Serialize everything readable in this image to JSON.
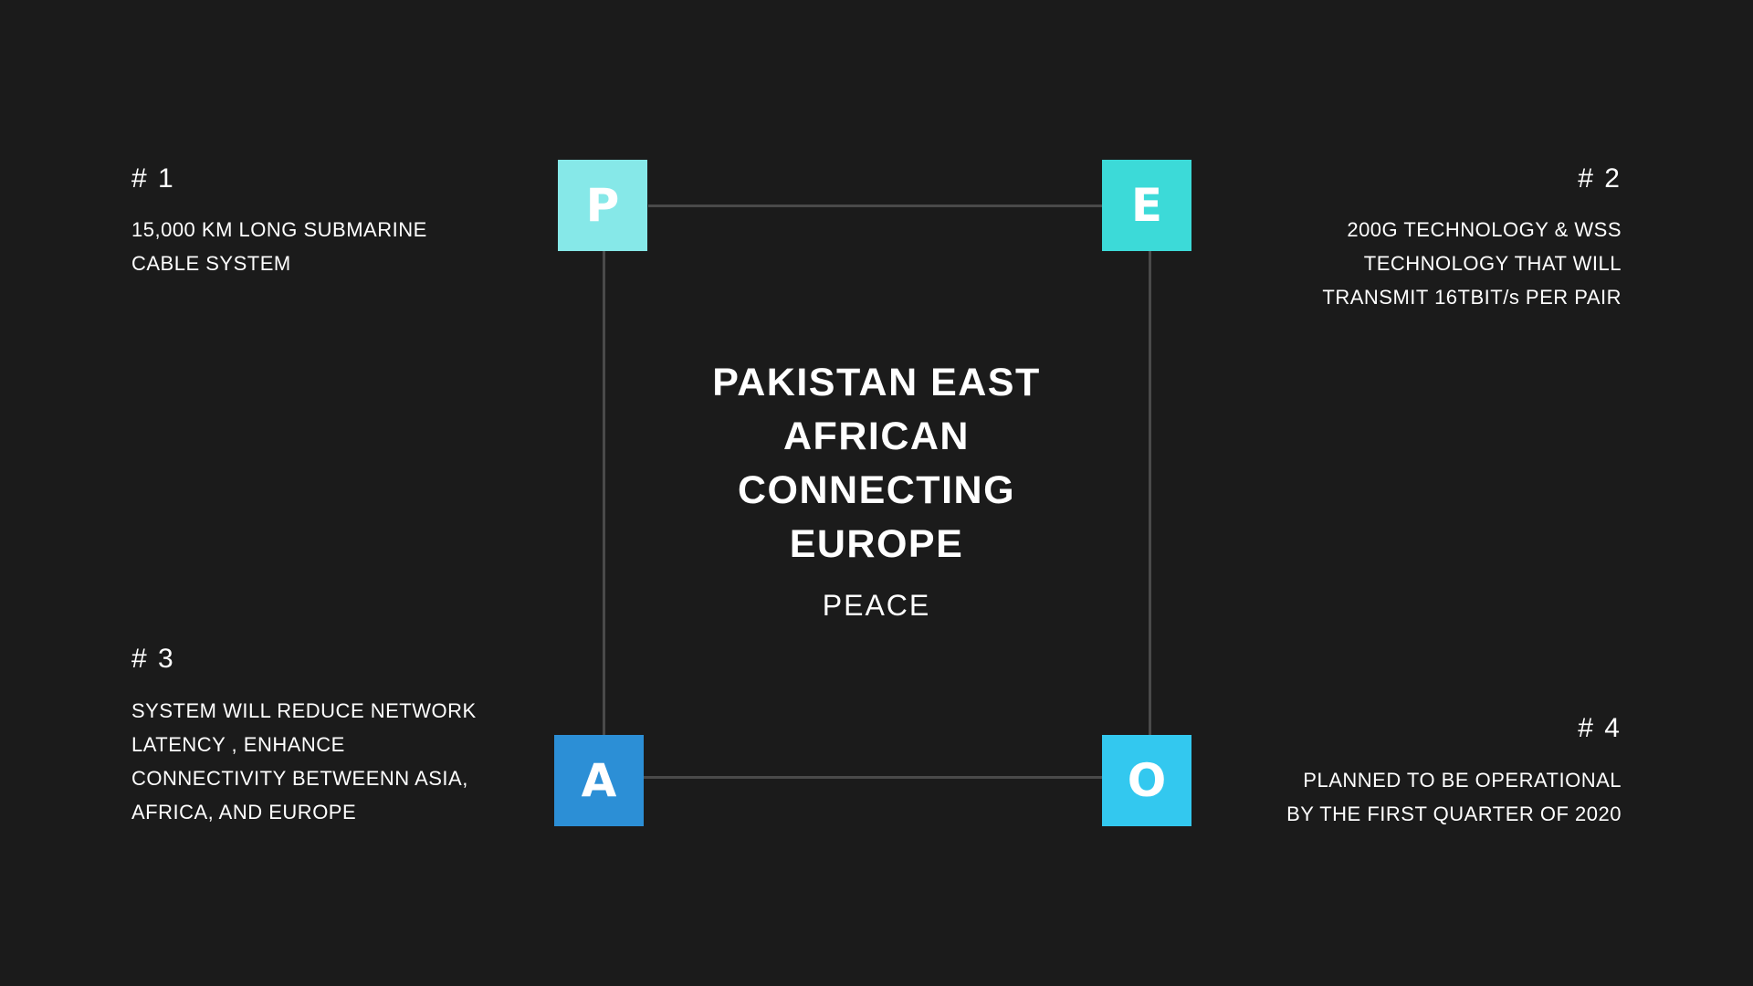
{
  "title": "PAKISTAN EAST AFRICAN CONNECTING EUROPE",
  "subtitle": "PEACE",
  "tiles": {
    "p": {
      "letter": "P",
      "color": "#86e8e8"
    },
    "e": {
      "letter": "E",
      "color": "#3cdad8"
    },
    "a": {
      "letter": "A",
      "color": "#2c8fd6"
    },
    "o": {
      "letter": "O",
      "color": "#33c8ef"
    }
  },
  "points": [
    {
      "number": "# 1",
      "text": [
        "15,000 KM LONG SUBMARINE",
        "CABLE SYSTEM"
      ]
    },
    {
      "number": "# 2",
      "text": [
        "200G TECHNOLOGY & WSS",
        "TECHNOLOGY THAT WILL",
        "TRANSMIT 16TBIT/s PER PAIR"
      ]
    },
    {
      "number": "# 3",
      "text": [
        "SYSTEM WILL REDUCE NETWORK",
        "LATENCY , ENHANCE",
        "CONNECTIVITY BETWEENN ASIA,",
        "AFRICA, AND EUROPE"
      ]
    },
    {
      "number": "# 4",
      "text": [
        "PLANNED TO BE OPERATIONAL",
        "BY THE FIRST QUARTER OF 2020"
      ]
    }
  ]
}
